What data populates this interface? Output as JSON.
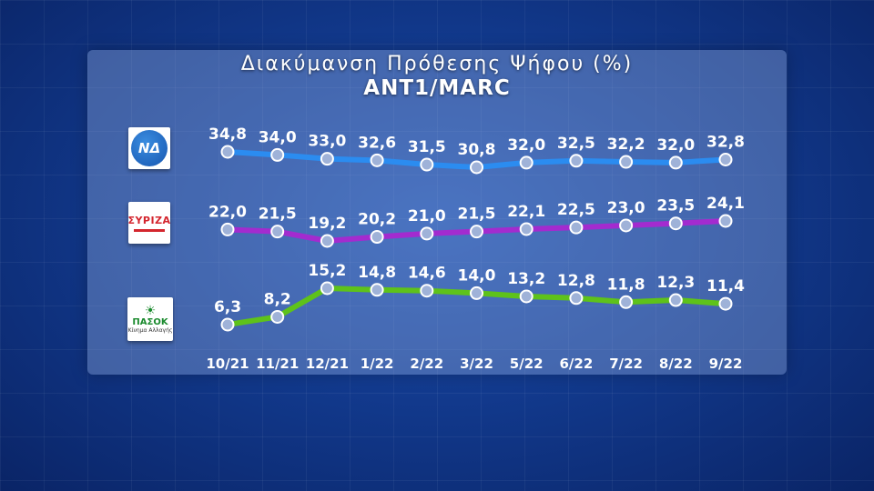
{
  "title": "Διακύμανση Πρόθεσης Ψήφου (%)",
  "subtitle": "ANT1/MARC",
  "logos": {
    "nd_text": "ΝΔ",
    "syriza_text": "ΣΥΡΙΖΑ",
    "pasok_text": "ΠΑΣΟΚ",
    "pasok_sub": "Κίνημα Αλλαγής"
  },
  "chart_data": {
    "type": "line",
    "title": "Διακύμανση Πρόθεσης Ψήφου (%)",
    "subtitle": "ANT1/MARC",
    "categories": [
      "10/21",
      "11/21",
      "12/21",
      "1/22",
      "2/22",
      "3/22",
      "5/22",
      "6/22",
      "7/22",
      "8/22",
      "9/22"
    ],
    "series": [
      {
        "name": "ΝΔ",
        "color": "#2b8cf0",
        "values": [
          34.8,
          34.0,
          33.0,
          32.6,
          31.5,
          30.8,
          32.0,
          32.5,
          32.2,
          32.0,
          32.8
        ],
        "labels": [
          "34,8",
          "34,0",
          "33,0",
          "32,6",
          "31,5",
          "30,8",
          "32,0",
          "32,5",
          "32,2",
          "32,0",
          "32,8"
        ]
      },
      {
        "name": "ΣΥΡΙΖΑ",
        "color": "#a32bcf",
        "values": [
          22.0,
          21.5,
          19.2,
          20.2,
          21.0,
          21.5,
          22.1,
          22.5,
          23.0,
          23.5,
          24.1
        ],
        "labels": [
          "22,0",
          "21,5",
          "19,2",
          "20,2",
          "21,0",
          "21,5",
          "22,1",
          "22,5",
          "23,0",
          "23,5",
          "24,1"
        ]
      },
      {
        "name": "ΠΑΣΟΚ",
        "color": "#5ec21a",
        "values": [
          6.3,
          8.2,
          15.2,
          14.8,
          14.6,
          14.0,
          13.2,
          12.8,
          11.8,
          12.3,
          11.4
        ],
        "labels": [
          "6,3",
          "8,2",
          "15,2",
          "14,8",
          "14,6",
          "14,0",
          "13,2",
          "12,8",
          "11,8",
          "12,3",
          "11,4"
        ]
      }
    ],
    "grid": false,
    "legend": "logos-left"
  }
}
